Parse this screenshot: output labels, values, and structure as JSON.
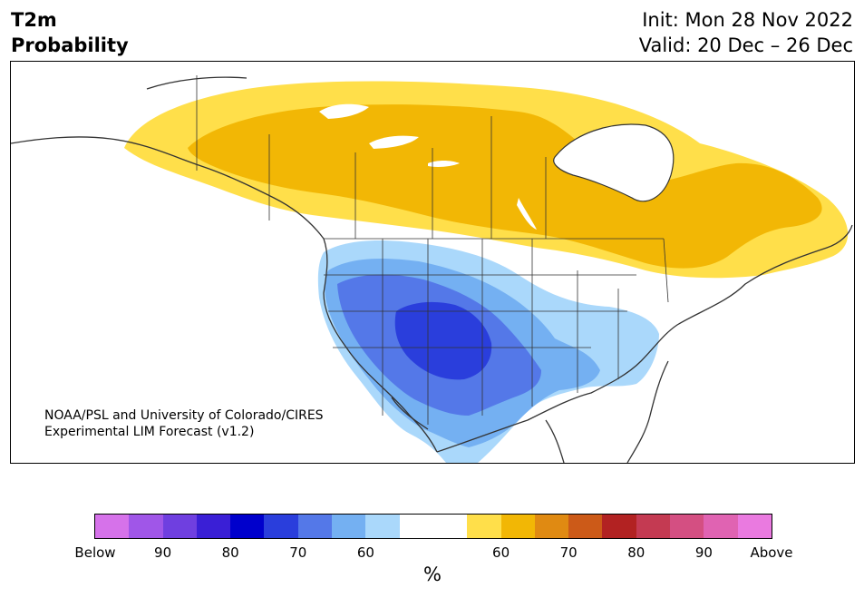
{
  "header": {
    "title_line1": "T2m",
    "title_line2": "Probability",
    "init": "Init: Mon 28 Nov 2022",
    "valid": "Valid: 20 Dec – 26 Dec"
  },
  "map": {
    "credit_line1": "NOAA/PSL and University of Colorado/CIRES",
    "credit_line2": "Experimental LIM Forecast (v1.2)",
    "colors": {
      "above_50_60": "#ffdf4a",
      "above_60_70": "#f2b705",
      "below_50_60": "#aad8fb",
      "below_60_70": "#74b0f2",
      "below_70_80": "#5478e8",
      "below_80_90": "#2a3edc",
      "lakes": "#ffffff",
      "coast": "#333333"
    }
  },
  "colorbar": {
    "colors": [
      "#d672ea",
      "#a056e8",
      "#6f3fe0",
      "#3a1fd6",
      "#0000cc",
      "#2a3edc",
      "#5478e8",
      "#74b0f2",
      "#aad8fb",
      "#ffffff",
      "#ffffff",
      "#ffdf4a",
      "#f2b705",
      "#e08a12",
      "#cc5a18",
      "#b22222",
      "#c43a52",
      "#d44f82",
      "#e063b2",
      "#ea7ae0"
    ],
    "tick_labels": [
      "Below",
      "90",
      "80",
      "70",
      "60",
      "60",
      "70",
      "80",
      "90",
      "Above"
    ],
    "unit": "%"
  }
}
